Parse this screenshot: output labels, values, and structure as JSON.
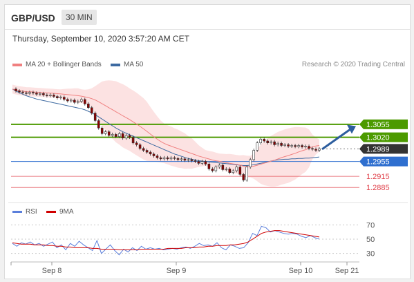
{
  "header": {
    "symbol": "GBP/USD",
    "timeframe": "30 MIN"
  },
  "datetime": "Thursday, September 10, 2020 3:57:20 AM CET",
  "legend": [
    {
      "label": "MA 20 + Bollinger Bands",
      "color": "#f08080"
    },
    {
      "label": "MA 50",
      "color": "#3d6aa1"
    }
  ],
  "credit": "Research © 2020 Trading Central",
  "colors": {
    "up": "#ffffff",
    "down": "#8b0000",
    "resistance": "#4c9a00",
    "current": "#333333",
    "pivot": "#2f6fcf",
    "support": "#e0404a"
  },
  "chart_data": [
    {
      "type": "line",
      "title": "",
      "ylim": [
        1.285,
        1.3185
      ],
      "x_ticks": [
        "Sep 8",
        "Sep 9",
        "Sep 10",
        "Sep 21"
      ],
      "levels": [
        {
          "value": 1.3055,
          "label": "1.3055",
          "kind": "resistance"
        },
        {
          "value": 1.302,
          "label": "1.3020",
          "kind": "resistance"
        },
        {
          "value": 1.2989,
          "label": "1.2989",
          "kind": "current"
        },
        {
          "value": 1.2955,
          "label": "1.2955",
          "kind": "pivot"
        },
        {
          "value": 1.2915,
          "label": "1.2915",
          "kind": "support"
        },
        {
          "value": 1.2885,
          "label": "1.2885",
          "kind": "support"
        }
      ],
      "series": [
        {
          "values": [
            1.315,
            1.3145,
            1.3142,
            1.314,
            1.3138,
            1.3141,
            1.3139,
            1.3136,
            1.3138,
            1.3134,
            1.3132,
            1.3134,
            1.313,
            1.3126,
            1.3128,
            1.3122,
            1.3118,
            1.312,
            1.3114,
            1.3117,
            1.3122,
            1.311,
            1.31,
            1.3085,
            1.3065,
            1.3045,
            1.303,
            1.3035,
            1.3025,
            1.3028,
            1.3022,
            1.303,
            1.3018,
            1.3025,
            1.302,
            1.3005,
            1.3,
            1.299,
            1.2985,
            1.298,
            1.2975,
            1.297,
            1.2965,
            1.2962,
            1.2965,
            1.2962,
            1.2965,
            1.2963,
            1.296,
            1.2962,
            1.2958,
            1.296,
            1.2957,
            1.2955,
            1.295,
            1.2955,
            1.2948,
            1.2935,
            1.293,
            1.294,
            1.2945,
            1.2933,
            1.2935,
            1.2925,
            1.293,
            1.294,
            1.292,
            1.2905,
            1.294,
            1.296,
            1.2985,
            1.3005,
            1.3015,
            1.301,
            1.3005,
            1.3008,
            1.3,
            1.3004,
            1.2998,
            1.3,
            1.2996,
            1.2998,
            1.2995,
            1.2998,
            1.2994,
            1.2996,
            1.299,
            1.2988,
            1.2985,
            1.2989
          ]
        },
        {
          "values": [
            1.315,
            1.3145,
            1.314,
            1.3136,
            1.3132,
            1.3129,
            1.3126,
            1.3123,
            1.3121,
            1.3119,
            1.3117,
            1.3115,
            1.3113,
            1.3111,
            1.3109,
            1.3107,
            1.3105,
            1.3103,
            1.3101,
            1.3099,
            1.3097,
            1.3094,
            1.309,
            1.3086,
            1.3081,
            1.3075,
            1.3069,
            1.3063,
            1.3057,
            1.3051,
            1.3045,
            1.304,
            1.3035,
            1.3031,
            1.3027,
            1.3023,
            1.3019,
            1.3015,
            1.3011,
            1.3007,
            1.3003,
            1.2999,
            1.2995,
            1.2991,
            1.2987,
            1.2983,
            1.2979,
            1.2975,
            1.2972,
            1.2969,
            1.2966,
            1.2963,
            1.2961,
            1.2959,
            1.2957,
            1.2956,
            1.2955,
            1.2954,
            1.2953,
            1.2952,
            1.2951,
            1.295,
            1.2949,
            1.2948,
            1.2947,
            1.2946,
            1.2945,
            1.2944,
            1.2944,
            1.2945,
            1.2946,
            1.2948,
            1.295,
            1.2952,
            1.2954,
            1.2956,
            1.2958,
            1.2959,
            1.296,
            1.2961,
            1.2961,
            1.2962,
            1.2962,
            1.2963,
            1.2963,
            1.2964,
            1.2964,
            1.2965,
            1.2966,
            1.2967
          ]
        }
      ],
      "target_arrow": {
        "from": 1.2988,
        "to": 1.305
      }
    },
    {
      "type": "line",
      "title": "",
      "legend": [
        {
          "label": "RSI",
          "color": "#5b7fdb"
        },
        {
          "label": "9MA",
          "color": "#d00000"
        }
      ],
      "ylim": [
        20,
        80
      ],
      "y_ticks": [
        70,
        50,
        30
      ],
      "x_ticks": [
        "Sep 8",
        "Sep 9",
        "Sep 10",
        "Sep 21"
      ],
      "series": [
        {
          "values": [
            44,
            40,
            45,
            43,
            46,
            42,
            44,
            40,
            43,
            46,
            38,
            42,
            35,
            44,
            40,
            47,
            42,
            38,
            34,
            48,
            30,
            36,
            42,
            34,
            28,
            36,
            32,
            38,
            34,
            40,
            36,
            38,
            36,
            37,
            35,
            36,
            37,
            36,
            38,
            39,
            37,
            40,
            44,
            41,
            42,
            40,
            45,
            38,
            35,
            42,
            40,
            37,
            38,
            45,
            58,
            55,
            68,
            66,
            60,
            62,
            60,
            58,
            57,
            58,
            57,
            54,
            52,
            55,
            52,
            50
          ]
        },
        {
          "values": [
            45,
            44,
            43,
            43,
            43,
            42,
            42,
            42,
            41,
            41,
            40,
            40,
            39,
            39,
            38,
            38,
            38,
            38,
            37,
            37,
            36,
            36,
            36,
            36,
            35,
            35,
            35,
            35,
            35,
            36,
            36,
            36,
            36,
            36,
            36,
            37,
            37,
            37,
            37,
            38,
            38,
            38,
            39,
            39,
            40,
            40,
            41,
            41,
            41,
            42,
            42,
            43,
            44,
            46,
            50,
            54,
            58,
            60,
            61,
            62,
            62,
            61,
            60,
            59,
            58,
            57,
            56,
            55,
            54,
            53
          ]
        }
      ]
    }
  ]
}
